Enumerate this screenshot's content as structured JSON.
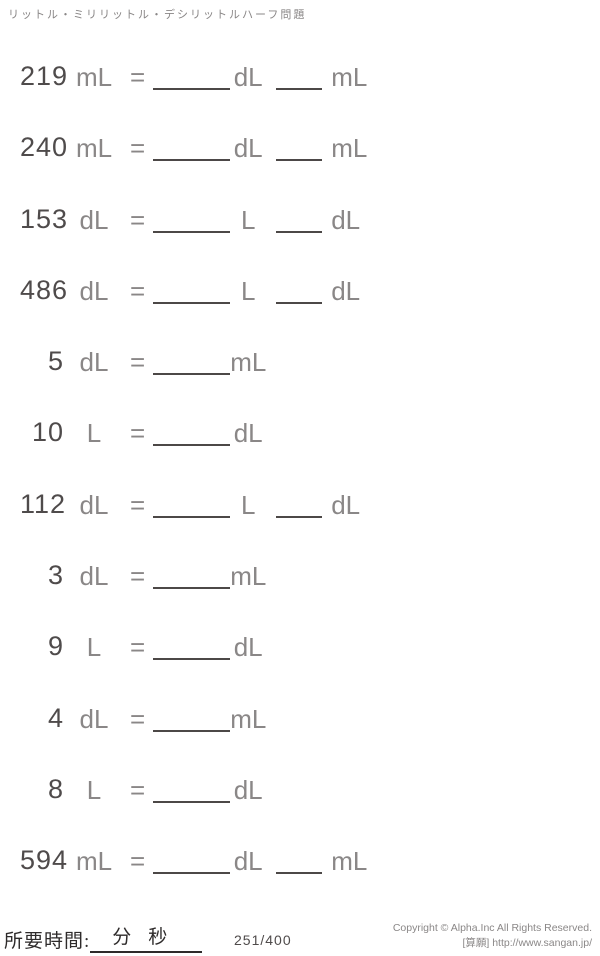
{
  "header": {
    "title": "リットル・ミリリットル・デシリットルハーフ問題"
  },
  "equals_sign": "=",
  "problems": [
    {
      "value": "219",
      "unit": "mL",
      "answer_unit_1": "dL",
      "answer_unit_2": "mL"
    },
    {
      "value": "240",
      "unit": "mL",
      "answer_unit_1": "dL",
      "answer_unit_2": "mL"
    },
    {
      "value": "153",
      "unit": "dL",
      "answer_unit_1": "L",
      "answer_unit_2": "dL"
    },
    {
      "value": "486",
      "unit": "dL",
      "answer_unit_1": "L",
      "answer_unit_2": "dL"
    },
    {
      "value": "5",
      "unit": "dL",
      "answer_unit_1": "mL",
      "answer_unit_2": null
    },
    {
      "value": "10",
      "unit": "L",
      "answer_unit_1": "dL",
      "answer_unit_2": null
    },
    {
      "value": "112",
      "unit": "dL",
      "answer_unit_1": "L",
      "answer_unit_2": "dL"
    },
    {
      "value": "3",
      "unit": "dL",
      "answer_unit_1": "mL",
      "answer_unit_2": null
    },
    {
      "value": "9",
      "unit": "L",
      "answer_unit_1": "dL",
      "answer_unit_2": null
    },
    {
      "value": "4",
      "unit": "dL",
      "answer_unit_1": "mL",
      "answer_unit_2": null
    },
    {
      "value": "8",
      "unit": "L",
      "answer_unit_1": "dL",
      "answer_unit_2": null
    },
    {
      "value": "594",
      "unit": "mL",
      "answer_unit_1": "dL",
      "answer_unit_2": "mL"
    }
  ],
  "footer": {
    "time_label": "所要時間:",
    "minutes_label": "分",
    "seconds_label": "秒",
    "page_number": "251/400",
    "copyright_line1": "Copyright © Alpha.Inc All Rights Reserved.",
    "copyright_line2": "[算願] http://www.sangan.jp/"
  },
  "colors": {
    "number_gray": "#4f4b4b",
    "unit_gray": "#8a8787",
    "line_gray": "#4c4847"
  }
}
